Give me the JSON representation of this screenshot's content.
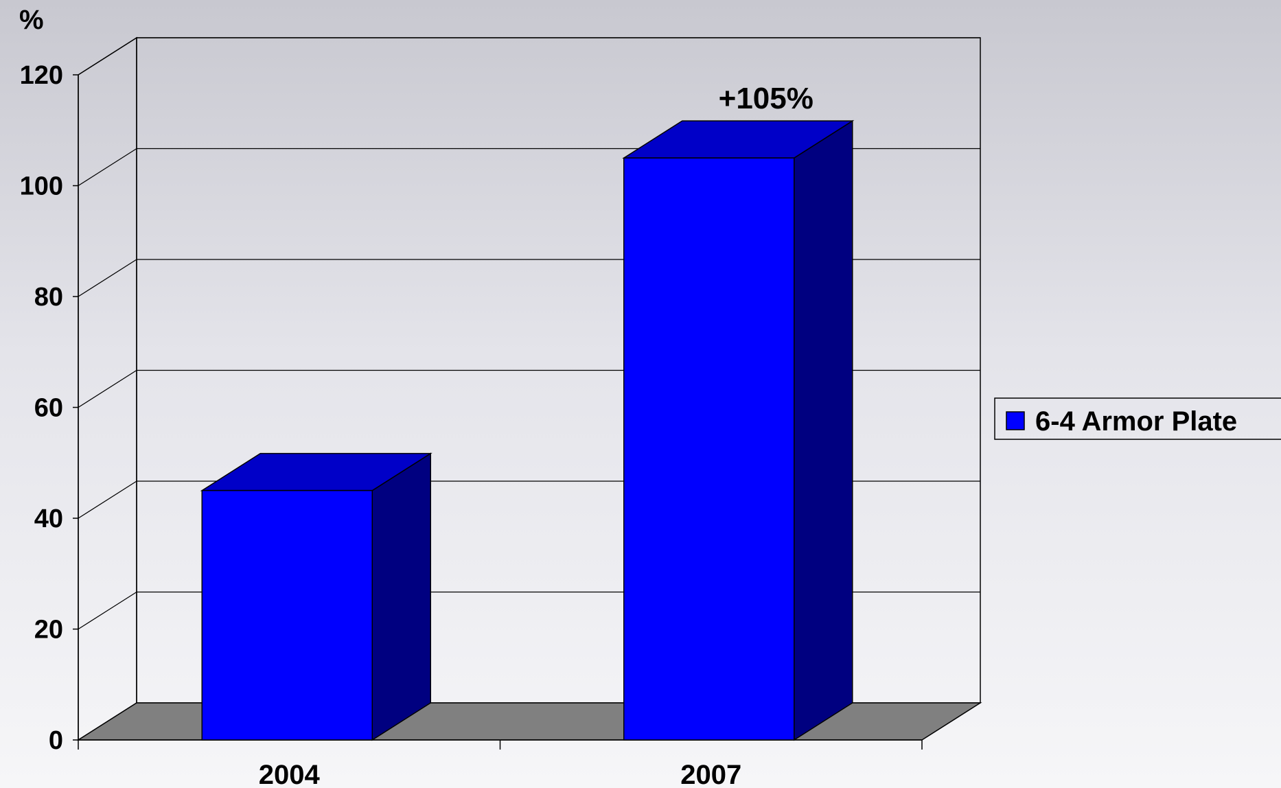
{
  "chart_data": {
    "type": "bar",
    "categories": [
      "2004",
      "2007"
    ],
    "series": [
      {
        "name": "6-4 Armor Plate",
        "values": [
          45,
          105
        ],
        "color": "#0000ff",
        "side_color": "#000080",
        "top_color": "#0000c8"
      }
    ],
    "ylabel": "%",
    "ylim": [
      0,
      120
    ],
    "yticks": [
      0,
      20,
      40,
      60,
      80,
      100,
      120
    ],
    "annotations": [
      {
        "category": "2007",
        "text": "+105%"
      }
    ],
    "grid": true,
    "legend_position": "right",
    "floor_color": "#808080",
    "three_d": true
  }
}
